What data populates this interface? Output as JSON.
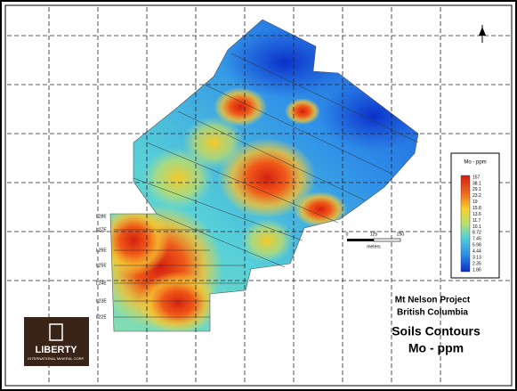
{
  "map": {
    "project": "Mt Nelson Project",
    "region": "British Columbia",
    "title": "Soils Contours",
    "subtitle": "Mo - ppm"
  },
  "legend": {
    "title": "Mo - ppm",
    "labels": [
      "157",
      "38.1",
      "29.1",
      "23.2",
      "19",
      "15.8",
      "13.6",
      "11.7",
      "10.1",
      "8.72",
      "7.45",
      "5.98",
      "4.44",
      "3.13",
      "2.35",
      "1.86"
    ]
  },
  "scale_bar": {
    "ticks": [
      "0",
      "125",
      "250"
    ],
    "unit": "meters"
  },
  "line_labels": [
    "L28E",
    "L27E",
    "L26E",
    "L25E",
    "L24E",
    "L23E",
    "L22E"
  ],
  "logo": {
    "name": "LIBERTY",
    "tagline": "INTERNATIONAL MINERAL CORP."
  }
}
